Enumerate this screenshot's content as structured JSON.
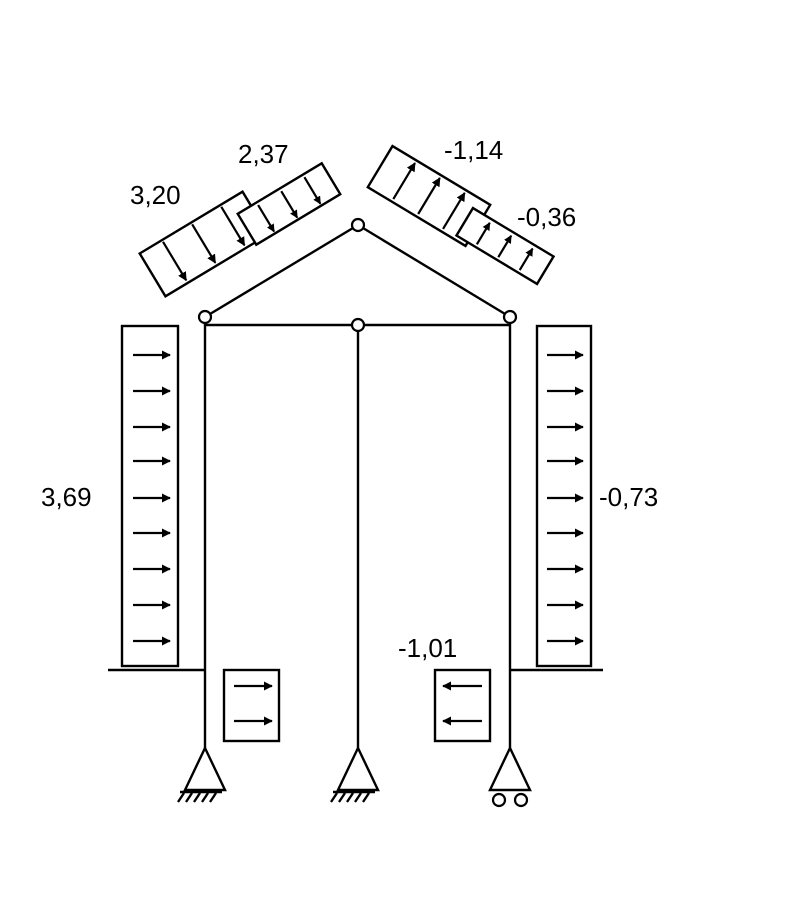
{
  "labels": {
    "roof_left_outer": "3,20",
    "roof_left_inner": "2,37",
    "roof_right_inner": "-1,14",
    "roof_right_outer": "-0,36",
    "wall_left": "3,69",
    "wall_right": "-0,73",
    "ground_left": "",
    "ground_right": "-1,01"
  },
  "colors": {
    "line": "#000000",
    "background": "#ffffff"
  }
}
